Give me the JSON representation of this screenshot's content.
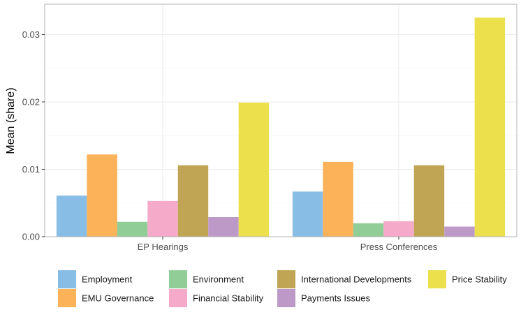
{
  "chart_data": {
    "type": "bar",
    "title": "",
    "xlabel": "",
    "ylabel": "Mean (share)",
    "ylim": [
      0,
      0.0345
    ],
    "yticks": [
      0.0,
      0.01,
      0.02,
      0.03
    ],
    "ytick_labels": [
      "0.00",
      "0.01",
      "0.02",
      "0.03"
    ],
    "grid": true,
    "legend_position": "bottom",
    "categories": [
      "EP Hearings",
      "Press Conferences"
    ],
    "series": [
      {
        "name": "Employment",
        "color": "#88bde6",
        "values": [
          0.0061,
          0.0067
        ]
      },
      {
        "name": "EMU Governance",
        "color": "#fbb258",
        "values": [
          0.0122,
          0.0111
        ]
      },
      {
        "name": "Environment",
        "color": "#90cd97",
        "values": [
          0.0022,
          0.002
        ]
      },
      {
        "name": "Financial Stability",
        "color": "#f6aac9",
        "values": [
          0.0053,
          0.0023
        ]
      },
      {
        "name": "International Developments",
        "color": "#bfa554",
        "values": [
          0.0106,
          0.0106
        ]
      },
      {
        "name": "Payments Issues",
        "color": "#bc99c7",
        "values": [
          0.0029,
          0.0015
        ]
      },
      {
        "name": "Price Stability",
        "color": "#ede04d",
        "values": [
          0.0199,
          0.0325
        ]
      }
    ]
  }
}
